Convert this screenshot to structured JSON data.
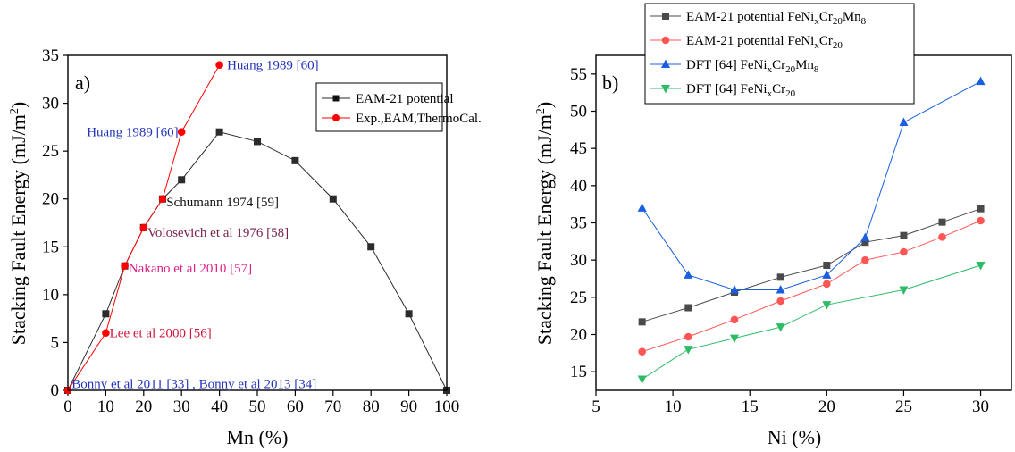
{
  "colors": {
    "black_series": "#2b2b2b",
    "red_series": "#ff0000",
    "blue_series": "#1a5fe0",
    "green_series": "#2ebb66",
    "gray_series": "#4a4a4a",
    "label_blue": "#2233bb",
    "label_darkred": "#7a1f4a",
    "label_pink": "#e0208a",
    "label_crimson": "#d2143c"
  },
  "chart_data": [
    {
      "type": "line",
      "panel_label": "a)",
      "xlabel": "Mn (%)",
      "ylabel": "Stacking Fault Energy (mJ/m2)",
      "ylabel_parts": {
        "main": "Stacking Fault Energy (mJ/m",
        "sup": "2",
        "end": ")"
      },
      "xlim": [
        0,
        100
      ],
      "ylim": [
        0,
        35
      ],
      "xticks": [
        0,
        10,
        20,
        30,
        40,
        50,
        60,
        70,
        80,
        90,
        100
      ],
      "yticks": [
        0,
        5,
        10,
        15,
        20,
        25,
        30,
        35
      ],
      "legend_position": "top-right",
      "series": [
        {
          "name": "EAM-21 potential",
          "color": "#2b2b2b",
          "marker": "square",
          "x": [
            0,
            10,
            15,
            20,
            25,
            30,
            40,
            50,
            60,
            70,
            80,
            90,
            100
          ],
          "y": [
            0,
            8,
            13,
            17,
            20,
            22,
            27,
            26,
            24,
            20,
            15,
            8,
            0
          ]
        },
        {
          "name": "Exp.,EAM,ThermoCal.",
          "color": "#ff0000",
          "marker": "circle",
          "x": [
            0,
            10,
            15,
            20,
            25,
            30,
            40
          ],
          "y": [
            0,
            6,
            13,
            17,
            20,
            27,
            34
          ]
        }
      ],
      "annotations": [
        {
          "text": "Huang 1989 [60]",
          "x": 42,
          "y": 34,
          "color": "#2233bb"
        },
        {
          "text": "Huang 1989 [60]",
          "x": 5,
          "y": 27,
          "color": "#2233bb"
        },
        {
          "text": "Schumann 1974 [59]",
          "x": 26,
          "y": 19.7,
          "color": "#111111"
        },
        {
          "text": "Volosevich et al 1976 [58]",
          "x": 21,
          "y": 16.5,
          "color": "#7a1f4a"
        },
        {
          "text": "Nakano et al 2010 [57]",
          "x": 16,
          "y": 12.8,
          "color": "#e0208a"
        },
        {
          "text": "Lee et al 2000 [56]",
          "x": 11,
          "y": 6,
          "color": "#d2143c"
        },
        {
          "text": "Bonny et al 2011 [33] , Bonny et al 2013 [34]",
          "x": 1,
          "y": 0.7,
          "color": "#2233bb"
        }
      ]
    },
    {
      "type": "line",
      "panel_label": "b)",
      "xlabel": "Ni (%)",
      "ylabel": "Stacking Fault Energy (mJ/m2)",
      "ylabel_parts": {
        "main": "Stacking Fault Energy (mJ/m",
        "sup": "2",
        "end": ")"
      },
      "xlim": [
        5,
        32
      ],
      "ylim": [
        12.5,
        57.5
      ],
      "xticks": [
        5,
        10,
        15,
        20,
        25,
        30
      ],
      "yticks": [
        15,
        20,
        25,
        30,
        35,
        40,
        45,
        50,
        55
      ],
      "legend_position": "top-left, above plot",
      "series": [
        {
          "name": "EAM-21 potential FeNixCr20Mn8",
          "label_parts": [
            "EAM-21 potential FeNi",
            "x",
            "Cr",
            "20",
            "Mn",
            "8"
          ],
          "color": "#4a4a4a",
          "marker": "square",
          "x": [
            8,
            11,
            14,
            17,
            20,
            22.5,
            25,
            27.5,
            30
          ],
          "y": [
            21.7,
            23.6,
            25.7,
            27.7,
            29.3,
            32.4,
            33.3,
            35.1,
            36.9
          ]
        },
        {
          "name": "EAM-21 potential FeNixCr20",
          "label_parts": [
            "EAM-21 potential FeNi",
            "x",
            "Cr",
            "20"
          ],
          "color": "#ff5555",
          "marker": "circle",
          "x": [
            8,
            11,
            14,
            17,
            20,
            22.5,
            25,
            27.5,
            30
          ],
          "y": [
            17.7,
            19.7,
            22,
            24.5,
            26.8,
            30,
            31.1,
            33.1,
            35.3
          ]
        },
        {
          "name": "DFT [64] FeNixCr20Mn8",
          "label_parts": [
            "DFT [64] FeNi",
            "x",
            "Cr",
            "20",
            "Mn",
            "8"
          ],
          "color": "#1a5fe0",
          "marker": "triangle-up",
          "x": [
            8,
            11,
            14,
            17,
            20,
            22.5,
            25,
            30
          ],
          "y": [
            37,
            28,
            26,
            26,
            28,
            33,
            48.5,
            54
          ]
        },
        {
          "name": "DFT [64] FeNixCr20",
          "label_parts": [
            "DFT [64] FeNi",
            "x",
            "Cr",
            "20"
          ],
          "color": "#2ebb66",
          "marker": "triangle-down",
          "x": [
            8,
            11,
            14,
            17,
            20,
            25,
            30
          ],
          "y": [
            14,
            18,
            19.5,
            21,
            24,
            26,
            29.3
          ]
        }
      ]
    }
  ]
}
